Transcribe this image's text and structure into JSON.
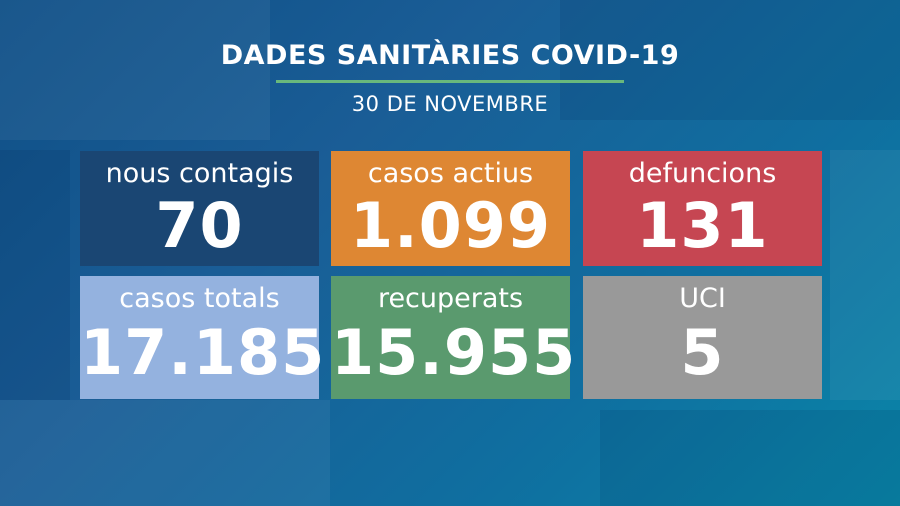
{
  "header": {
    "title": "DADES SANITÀRIES COVID-19",
    "date": "30 DE NOVEMBRE"
  },
  "colors": {
    "rule": "#69b87c",
    "nous_contagis": "#1a4673",
    "casos_actius": "#de8733",
    "defuncions": "#c64652",
    "casos_totals": "#94b2df",
    "recuperats": "#5a9a6e",
    "uci": "#999999"
  },
  "stats": [
    {
      "label": "nous contagis",
      "value": "70"
    },
    {
      "label": "casos actius",
      "value": "1.099"
    },
    {
      "label": "defuncions",
      "value": "131"
    },
    {
      "label": "casos totals",
      "value": "17.185"
    },
    {
      "label": "recuperats",
      "value": "15.955"
    },
    {
      "label": "UCI",
      "value": "5"
    }
  ]
}
